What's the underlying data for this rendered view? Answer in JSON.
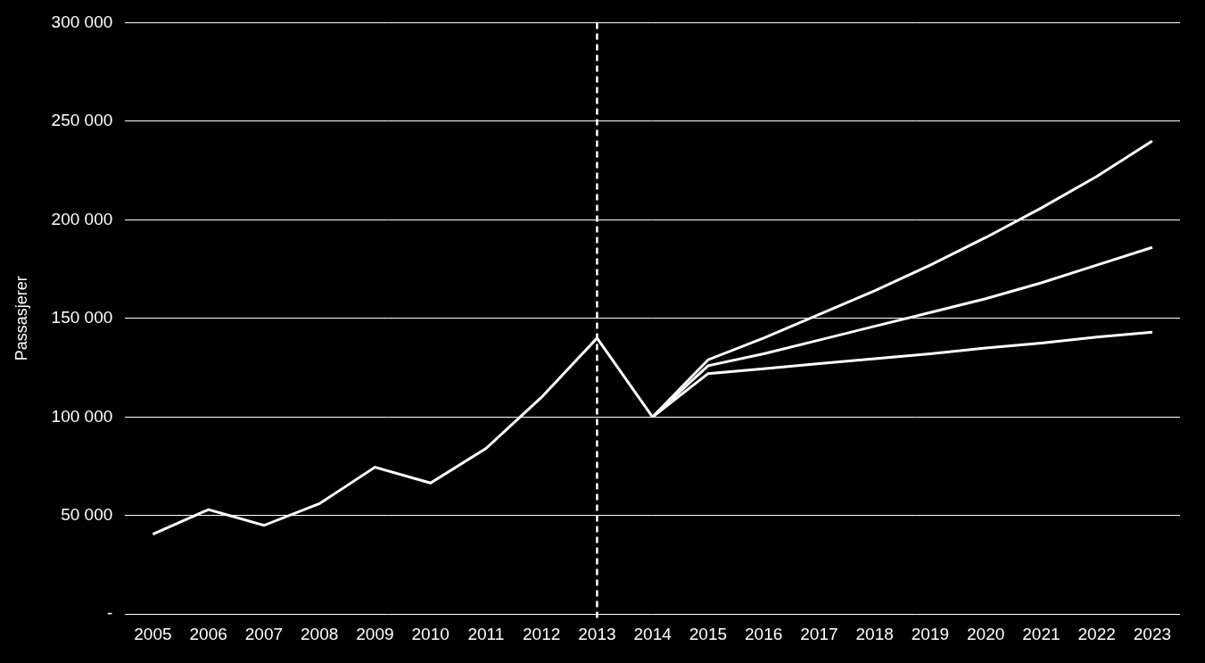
{
  "chart_data": {
    "type": "line",
    "y_label": "Passasjerer",
    "categories": [
      "2005",
      "2006",
      "2007",
      "2008",
      "2009",
      "2010",
      "2011",
      "2012",
      "2013",
      "2014",
      "2015",
      "2016",
      "2017",
      "2018",
      "2019",
      "2020",
      "2021",
      "2022",
      "2023"
    ],
    "series": [
      {
        "color": "#ffffff",
        "line_style": "solid",
        "values": [
          40500,
          53000,
          45000,
          56000,
          74500,
          66500,
          84000,
          110000,
          140000,
          100000,
          null,
          null,
          null,
          null,
          null,
          null,
          null,
          null,
          null
        ]
      },
      {
        "color": "#ffffff",
        "line_style": "solid",
        "values": [
          null,
          null,
          null,
          null,
          null,
          null,
          null,
          null,
          null,
          100000,
          129000,
          140000,
          152000,
          164000,
          177000,
          191000,
          206000,
          222000,
          240000
        ]
      },
      {
        "color": "#ffffff",
        "line_style": "solid",
        "values": [
          null,
          null,
          null,
          null,
          null,
          null,
          null,
          null,
          null,
          100000,
          126000,
          132000,
          139000,
          146000,
          153000,
          160000,
          168000,
          177000,
          186000
        ]
      },
      {
        "color": "#ffffff",
        "line_style": "solid",
        "values": [
          null,
          null,
          null,
          null,
          null,
          null,
          null,
          null,
          null,
          100000,
          122000,
          124500,
          127000,
          129500,
          132000,
          135000,
          137500,
          140500,
          143000
        ]
      }
    ],
    "vertical_line": {
      "x": "2013",
      "line_style": "dashed",
      "color": "#ffffff"
    },
    "ylim": [
      0,
      300000
    ],
    "yticks": [
      {
        "value": 0,
        "label": "-"
      },
      {
        "value": 50000,
        "label": "50 000"
      },
      {
        "value": 100000,
        "label": "100 000"
      },
      {
        "value": 150000,
        "label": "150 000"
      },
      {
        "value": 200000,
        "label": "200 000"
      },
      {
        "value": 250000,
        "label": "250 000"
      },
      {
        "value": 300000,
        "label": "300 000"
      }
    ],
    "grid": "y",
    "marker": "none"
  }
}
